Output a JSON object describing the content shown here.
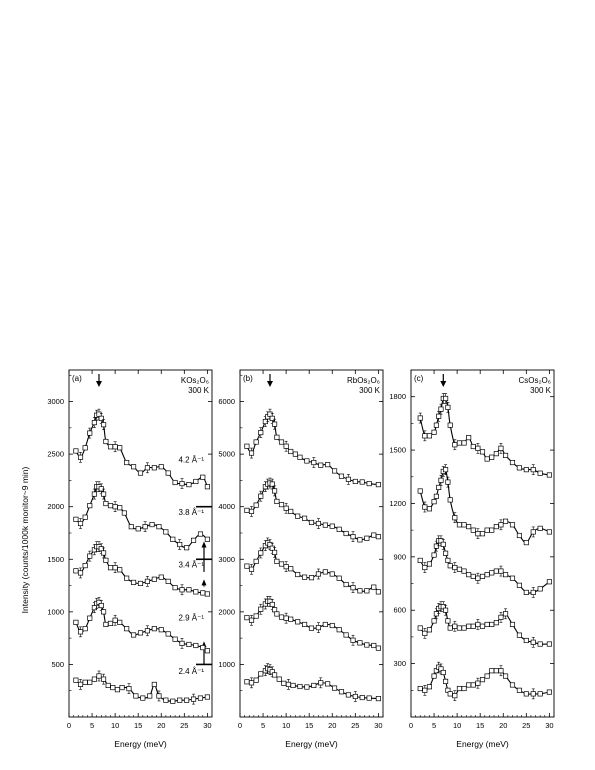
{
  "figure": {
    "ylabel": "Intensity (counts/1000k monitor~9 min)"
  },
  "chart_data": [
    {
      "type": "scatter",
      "panel_label": "(a)",
      "compound": "KOs₂O₆",
      "temperature": "300 K",
      "xlabel": "Energy (meV)",
      "xlim": [
        0,
        31
      ],
      "ylim": [
        0,
        3300
      ],
      "x_ticks": [
        0,
        5,
        10,
        15,
        20,
        25,
        30
      ],
      "y_ticks": [
        500,
        1000,
        1500,
        2000,
        2500,
        3000
      ],
      "arrow_x": 6.5,
      "series": [
        {
          "name": "4.2 Å⁻¹",
          "label_pos": [
            26.5,
            2420
          ],
          "x": [
            1.5,
            2.5,
            3.5,
            4.5,
            5.5,
            6.0,
            6.5,
            7.0,
            7.5,
            8.0,
            9.0,
            10.0,
            11.0,
            12.5,
            14.0,
            15.5,
            17.0,
            18.5,
            20.0,
            21.5,
            23.0,
            24.5,
            26.0,
            27.5,
            29.0,
            30.0
          ],
          "y": [
            2530,
            2470,
            2560,
            2700,
            2800,
            2870,
            2880,
            2840,
            2780,
            2620,
            2570,
            2570,
            2560,
            2420,
            2380,
            2320,
            2370,
            2370,
            2380,
            2320,
            2230,
            2220,
            2210,
            2240,
            2280,
            2190
          ]
        },
        {
          "name": "3.8 Å⁻¹",
          "label_pos": [
            26.5,
            1920
          ],
          "x": [
            1.5,
            2.5,
            3.5,
            4.5,
            5.5,
            6.0,
            6.5,
            7.0,
            7.5,
            8.0,
            9.0,
            10.0,
            11.0,
            12.0,
            13.5,
            15.0,
            16.5,
            18.0,
            19.5,
            21.0,
            22.5,
            24.0,
            25.5,
            27.0,
            28.5,
            30.0
          ],
          "y": [
            1880,
            1840,
            1900,
            2010,
            2120,
            2190,
            2190,
            2170,
            2120,
            2030,
            2010,
            2000,
            1990,
            1940,
            1810,
            1790,
            1810,
            1830,
            1810,
            1760,
            1690,
            1640,
            1610,
            1680,
            1740,
            1690
          ]
        },
        {
          "name": "3.4 Å⁻¹",
          "label_pos": [
            26.5,
            1420
          ],
          "x": [
            1.5,
            2.5,
            3.5,
            4.5,
            5.5,
            6.0,
            6.5,
            7.0,
            7.5,
            8.0,
            9.0,
            10.0,
            11.0,
            12.5,
            14.0,
            15.5,
            17.0,
            18.5,
            20.0,
            21.5,
            23.0,
            24.5,
            26.0,
            27.5,
            29.0,
            30.0
          ],
          "y": [
            1390,
            1370,
            1440,
            1530,
            1590,
            1620,
            1620,
            1600,
            1560,
            1490,
            1420,
            1420,
            1400,
            1320,
            1280,
            1270,
            1290,
            1310,
            1330,
            1290,
            1230,
            1210,
            1210,
            1190,
            1180,
            1170
          ]
        },
        {
          "name": "2.9 Å⁻¹",
          "label_pos": [
            26.5,
            920
          ],
          "x": [
            1.5,
            2.5,
            3.5,
            4.5,
            5.5,
            6.0,
            6.5,
            7.0,
            7.5,
            8.0,
            9.0,
            10.0,
            11.0,
            12.5,
            14.0,
            15.5,
            17.0,
            18.5,
            20.0,
            21.5,
            23.0,
            24.5,
            26.0,
            27.5,
            29.0,
            30.0
          ],
          "y": [
            900,
            810,
            840,
            940,
            1040,
            1080,
            1090,
            1060,
            1000,
            880,
            890,
            920,
            900,
            840,
            780,
            800,
            820,
            840,
            830,
            790,
            740,
            700,
            690,
            680,
            660,
            630
          ]
        },
        {
          "name": "2.4 Å⁻¹",
          "label_pos": [
            26.5,
            410
          ],
          "x": [
            1.5,
            2.5,
            3.5,
            4.5,
            5.5,
            6.5,
            7.5,
            8.5,
            9.5,
            10.5,
            11.5,
            13.0,
            14.5,
            16.0,
            17.5,
            18.5,
            19.5,
            21.0,
            22.5,
            24.0,
            25.5,
            27.0,
            28.5,
            30.0
          ],
          "y": [
            350,
            310,
            330,
            330,
            360,
            390,
            360,
            300,
            280,
            260,
            280,
            270,
            200,
            180,
            200,
            310,
            200,
            160,
            150,
            160,
            160,
            170,
            180,
            190
          ]
        }
      ],
      "offset_markers": [
        {
          "line_y": 2000,
          "arrow_from": 1380,
          "arrow_to": 1650
        },
        {
          "line_y": 1500,
          "arrow_from": 1240,
          "arrow_to": 1290
        },
        {
          "line_y": 500,
          "arrow_from": 500,
          "arrow_to": 700
        }
      ]
    },
    {
      "type": "scatter",
      "panel_label": "(b)",
      "compound": "RbOs₂O₆",
      "temperature": "300 K",
      "xlabel": "Energy (meV)",
      "xlim": [
        0,
        31
      ],
      "ylim": [
        0,
        6600
      ],
      "x_ticks": [
        0,
        5,
        10,
        15,
        20,
        25,
        30
      ],
      "y_ticks": [
        1000,
        2000,
        3000,
        4000,
        5000,
        6000
      ],
      "arrow_x": 6.5,
      "series": [
        {
          "name": "",
          "x": [
            1.5,
            2.5,
            3.5,
            4.5,
            5.5,
            6.0,
            6.5,
            7.0,
            7.5,
            8.0,
            9.0,
            10.0,
            11.0,
            12.0,
            13.0,
            14.5,
            16.0,
            17.5,
            19.0,
            20.5,
            22.0,
            23.5,
            25.0,
            26.5,
            28.0,
            30.0
          ],
          "y": [
            5150,
            5020,
            5230,
            5410,
            5620,
            5710,
            5760,
            5680,
            5570,
            5320,
            5230,
            5150,
            5050,
            5000,
            4940,
            4870,
            4840,
            4790,
            4800,
            4680,
            4580,
            4520,
            4480,
            4470,
            4440,
            4420
          ]
        },
        {
          "name": "",
          "x": [
            1.5,
            2.5,
            3.5,
            4.5,
            5.5,
            6.0,
            6.5,
            7.0,
            7.5,
            8.0,
            9.0,
            10.0,
            11.0,
            12.5,
            14.0,
            15.5,
            17.0,
            18.5,
            20.0,
            21.5,
            23.0,
            24.5,
            26.0,
            27.5,
            29.0,
            30.0
          ],
          "y": [
            3930,
            3910,
            4030,
            4200,
            4380,
            4430,
            4450,
            4430,
            4300,
            4100,
            4040,
            3970,
            3910,
            3820,
            3780,
            3700,
            3680,
            3650,
            3630,
            3570,
            3490,
            3430,
            3370,
            3400,
            3460,
            3430
          ]
        },
        {
          "name": "",
          "x": [
            1.5,
            2.5,
            3.5,
            4.5,
            5.5,
            6.0,
            6.5,
            7.0,
            7.5,
            8.0,
            9.0,
            10.0,
            11.0,
            12.5,
            14.0,
            15.5,
            17.0,
            18.5,
            20.0,
            21.5,
            23.0,
            24.5,
            26.0,
            27.5,
            29.0,
            30.0
          ],
          "y": [
            2870,
            2810,
            2960,
            3120,
            3260,
            3310,
            3280,
            3210,
            3130,
            2960,
            2910,
            2860,
            2820,
            2710,
            2660,
            2650,
            2720,
            2760,
            2720,
            2640,
            2520,
            2460,
            2400,
            2400,
            2470,
            2380
          ]
        },
        {
          "name": "",
          "x": [
            1.5,
            2.5,
            3.5,
            4.5,
            5.5,
            6.0,
            6.5,
            7.0,
            7.5,
            8.0,
            9.0,
            10.0,
            11.0,
            12.5,
            14.0,
            15.5,
            17.0,
            18.5,
            20.0,
            21.5,
            23.0,
            24.5,
            26.0,
            27.5,
            29.0,
            30.0
          ],
          "y": [
            1890,
            1840,
            1920,
            2050,
            2150,
            2200,
            2200,
            2140,
            2040,
            1960,
            1900,
            1880,
            1860,
            1810,
            1760,
            1690,
            1700,
            1760,
            1740,
            1660,
            1560,
            1460,
            1410,
            1370,
            1360,
            1310
          ]
        },
        {
          "name": "",
          "x": [
            1.5,
            2.5,
            3.5,
            4.5,
            5.5,
            6.0,
            6.5,
            7.0,
            7.5,
            8.5,
            9.5,
            10.5,
            11.5,
            13.0,
            14.5,
            16.0,
            17.5,
            19.0,
            20.5,
            22.0,
            23.5,
            25.0,
            26.5,
            28.0,
            30.0
          ],
          "y": [
            670,
            650,
            700,
            820,
            880,
            920,
            900,
            860,
            800,
            720,
            640,
            620,
            600,
            580,
            570,
            600,
            650,
            630,
            550,
            480,
            420,
            390,
            370,
            360,
            350
          ]
        }
      ]
    },
    {
      "type": "scatter",
      "panel_label": "(c)",
      "compound": "CsOs₂O₆",
      "temperature": "300 K",
      "xlabel": "Energy (meV)",
      "xlim": [
        0,
        31
      ],
      "ylim": [
        0,
        1950
      ],
      "x_ticks": [
        0,
        5,
        10,
        15,
        20,
        25,
        30
      ],
      "y_ticks": [
        300,
        600,
        900,
        1200,
        1500,
        1800
      ],
      "arrow_x": 7.0,
      "series": [
        {
          "name": "",
          "x": [
            2.0,
            3.0,
            4.0,
            5.0,
            5.5,
            6.0,
            6.5,
            7.0,
            7.5,
            8.0,
            8.5,
            9.5,
            10.5,
            11.5,
            12.5,
            13.5,
            14.5,
            15.5,
            16.5,
            17.5,
            18.5,
            19.5,
            20.5,
            22.0,
            23.5,
            25.0,
            26.5,
            28.0,
            30.0
          ],
          "y": [
            1680,
            1580,
            1580,
            1600,
            1640,
            1690,
            1730,
            1790,
            1790,
            1740,
            1640,
            1530,
            1540,
            1540,
            1570,
            1520,
            1510,
            1490,
            1450,
            1460,
            1480,
            1510,
            1470,
            1430,
            1400,
            1390,
            1390,
            1370,
            1360
          ]
        },
        {
          "name": "",
          "x": [
            2.0,
            3.0,
            4.0,
            5.0,
            5.5,
            6.0,
            6.5,
            7.0,
            7.5,
            8.0,
            8.5,
            9.5,
            10.5,
            11.5,
            12.5,
            13.5,
            14.5,
            15.5,
            16.5,
            17.5,
            18.5,
            19.5,
            20.5,
            22.0,
            23.5,
            25.0,
            26.5,
            28.0,
            30.0
          ],
          "y": [
            1270,
            1180,
            1170,
            1210,
            1240,
            1290,
            1330,
            1380,
            1390,
            1320,
            1220,
            1120,
            1080,
            1080,
            1070,
            1050,
            1030,
            1030,
            1050,
            1050,
            1070,
            1080,
            1100,
            1080,
            1020,
            980,
            1040,
            1060,
            1040
          ]
        },
        {
          "name": "",
          "x": [
            2.0,
            3.0,
            4.0,
            5.0,
            5.5,
            6.0,
            6.5,
            7.0,
            7.5,
            8.0,
            8.5,
            9.5,
            10.5,
            11.5,
            12.5,
            13.5,
            14.5,
            15.5,
            16.5,
            17.5,
            18.5,
            19.5,
            20.5,
            22.0,
            23.5,
            25.0,
            26.5,
            28.0,
            30.0
          ],
          "y": [
            880,
            840,
            860,
            910,
            960,
            990,
            990,
            970,
            920,
            880,
            850,
            840,
            830,
            820,
            800,
            790,
            780,
            790,
            800,
            810,
            820,
            820,
            800,
            780,
            740,
            700,
            700,
            720,
            760
          ]
        },
        {
          "name": "",
          "x": [
            2.0,
            3.0,
            4.0,
            5.0,
            5.5,
            6.0,
            6.5,
            7.0,
            7.5,
            8.0,
            8.5,
            9.5,
            10.5,
            11.5,
            12.5,
            13.5,
            14.5,
            15.5,
            16.5,
            17.5,
            18.5,
            19.5,
            20.5,
            22.0,
            23.5,
            25.0,
            26.5,
            28.0,
            30.0
          ],
          "y": [
            500,
            470,
            490,
            540,
            580,
            610,
            620,
            620,
            600,
            540,
            500,
            510,
            500,
            500,
            510,
            510,
            520,
            510,
            520,
            520,
            530,
            560,
            580,
            520,
            460,
            430,
            420,
            410,
            410
          ]
        },
        {
          "name": "",
          "x": [
            2.0,
            3.0,
            4.0,
            5.0,
            5.5,
            6.0,
            6.5,
            7.0,
            7.5,
            8.0,
            8.5,
            9.5,
            10.5,
            11.5,
            12.5,
            13.5,
            14.5,
            15.5,
            16.5,
            17.5,
            18.5,
            19.5,
            20.5,
            22.0,
            23.5,
            25.0,
            26.5,
            28.0,
            30.0
          ],
          "y": [
            160,
            150,
            170,
            230,
            260,
            280,
            270,
            250,
            200,
            150,
            130,
            120,
            160,
            160,
            180,
            180,
            190,
            210,
            230,
            260,
            260,
            260,
            230,
            180,
            150,
            130,
            130,
            130,
            140
          ]
        }
      ]
    }
  ]
}
